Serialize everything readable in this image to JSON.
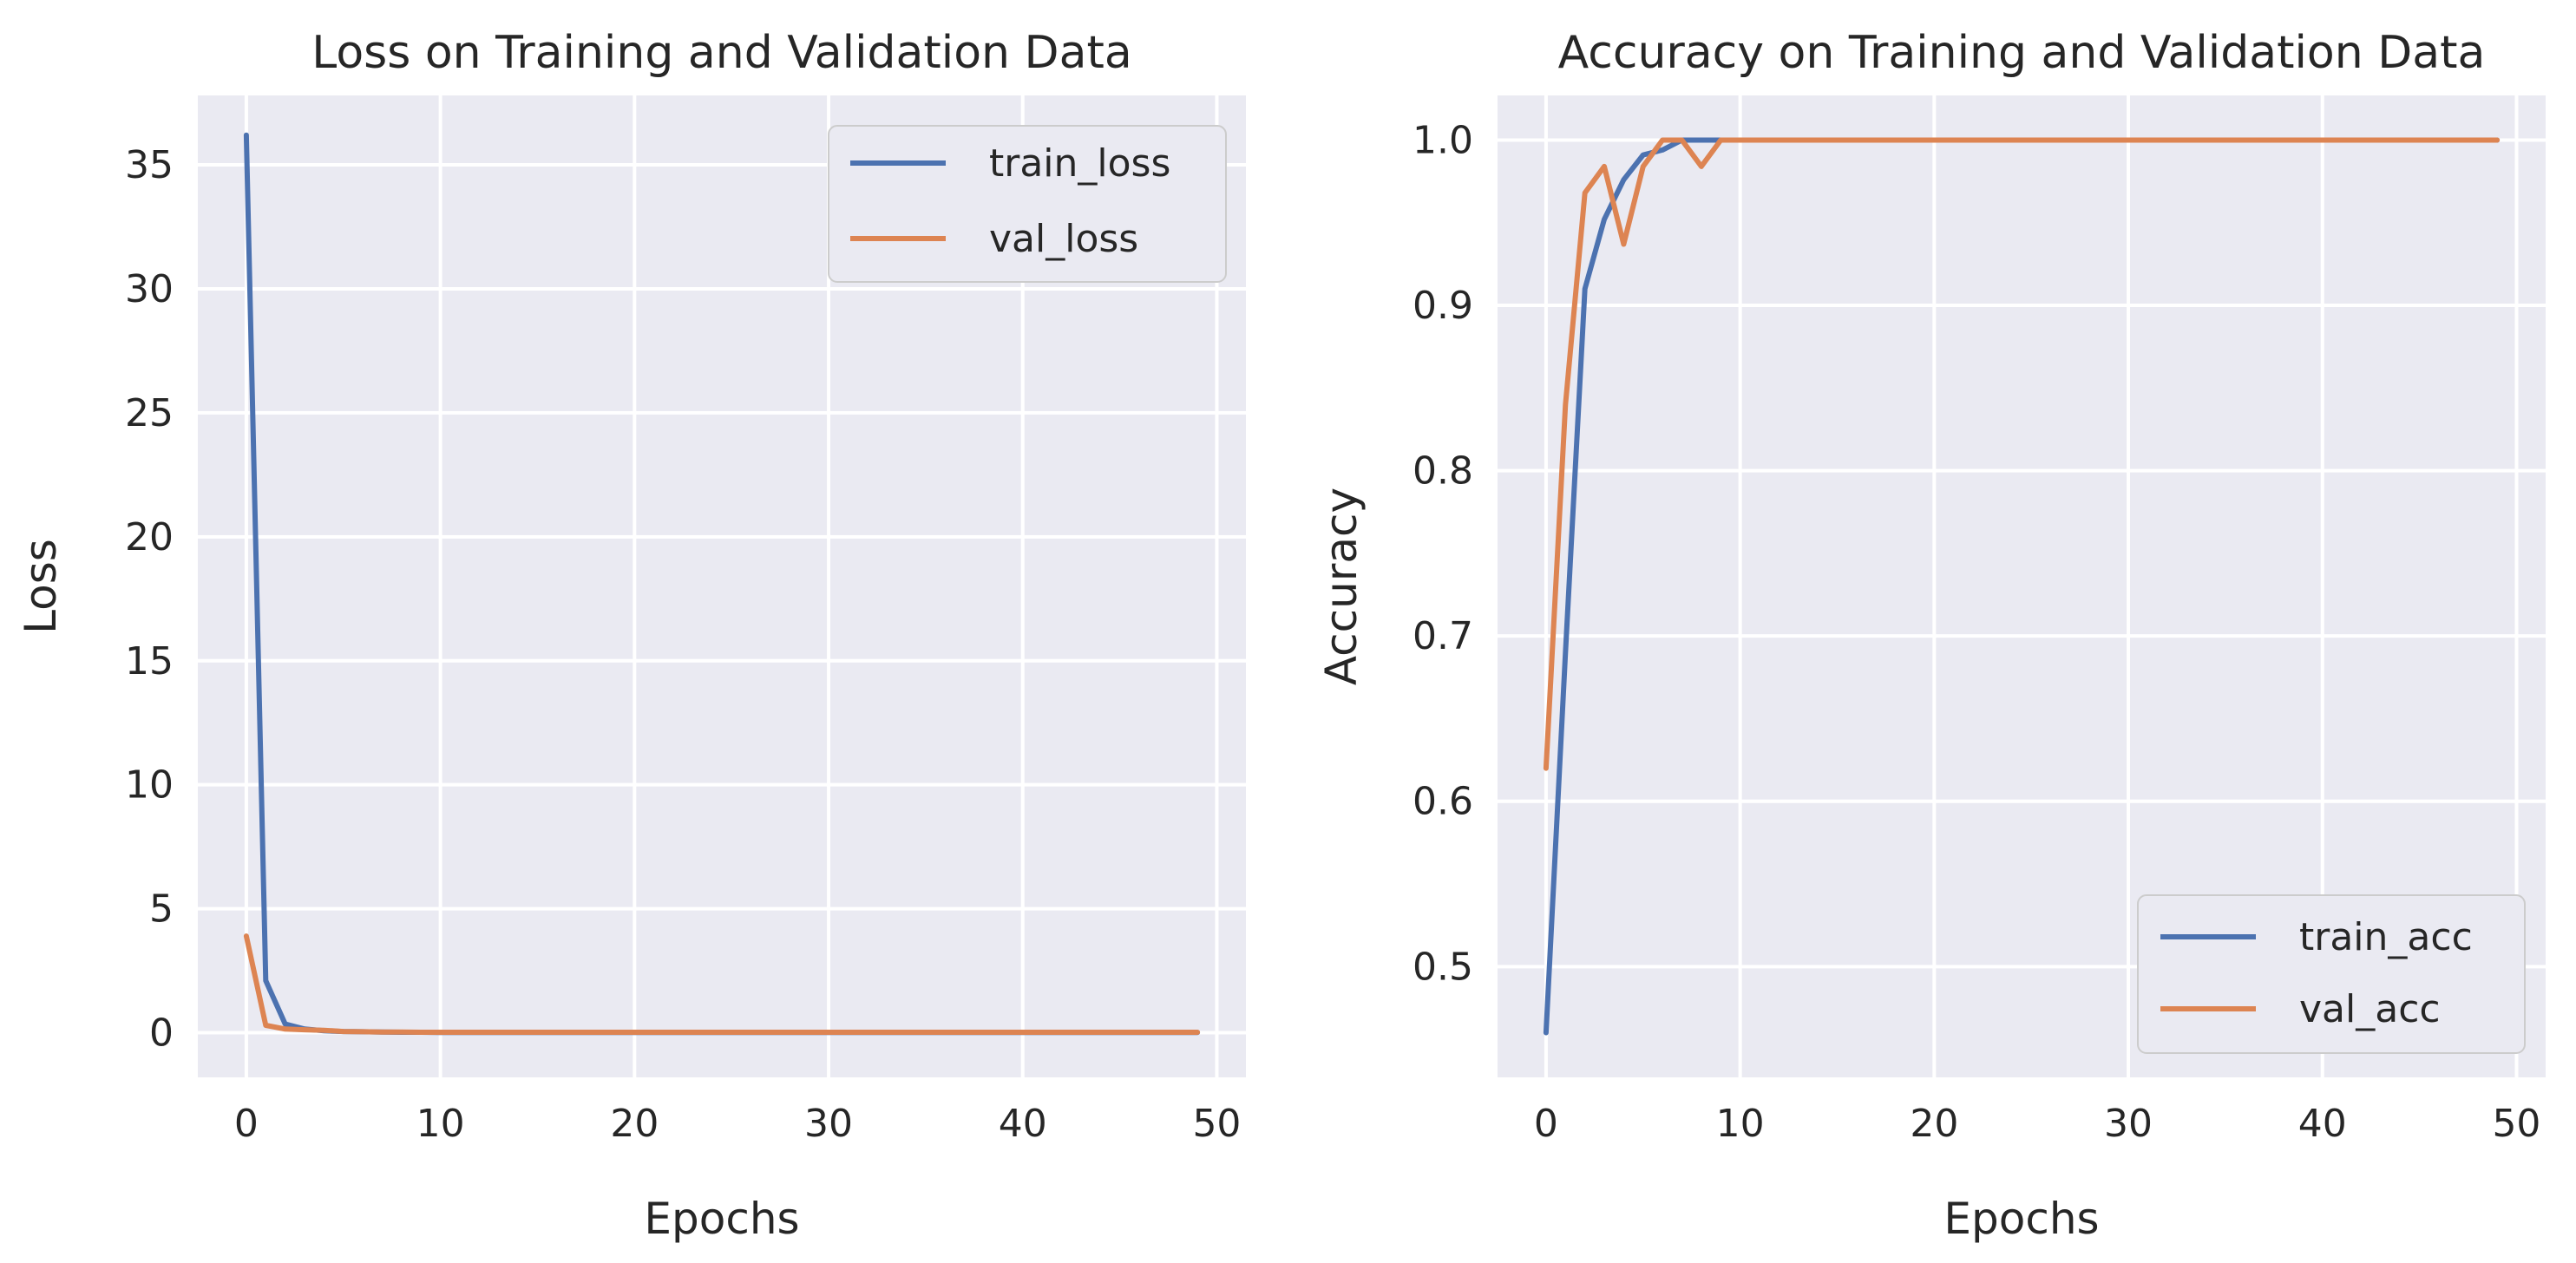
{
  "chart_data": [
    {
      "type": "line",
      "title": "Loss on Training and Validation Data",
      "xlabel": "Epochs",
      "ylabel": "Loss",
      "xlim": [
        -2.5,
        51.5
      ],
      "ylim": [
        -1.8,
        37.8
      ],
      "xticks": [
        0,
        10,
        20,
        30,
        40,
        50
      ],
      "yticks": [
        0,
        5,
        10,
        15,
        20,
        25,
        30,
        35
      ],
      "grid": true,
      "legend_position": "top-right",
      "x": [
        0,
        1,
        2,
        3,
        4,
        5,
        6,
        7,
        8,
        9,
        10,
        11,
        12,
        13,
        14,
        15,
        16,
        17,
        18,
        19,
        20,
        21,
        22,
        23,
        24,
        25,
        26,
        27,
        28,
        29,
        30,
        31,
        32,
        33,
        34,
        35,
        36,
        37,
        38,
        39,
        40,
        41,
        42,
        43,
        44,
        45,
        46,
        47,
        48,
        49
      ],
      "series": [
        {
          "name": "train_loss",
          "color": "#4c72b0",
          "values": [
            36.2,
            2.1,
            0.35,
            0.15,
            0.08,
            0.05,
            0.04,
            0.03,
            0.02,
            0.02,
            0.01,
            0.01,
            0.01,
            0.01,
            0.01,
            0.01,
            0.01,
            0.01,
            0.01,
            0.01,
            0.01,
            0.01,
            0.01,
            0.01,
            0.01,
            0.01,
            0.01,
            0.01,
            0.01,
            0.01,
            0.01,
            0.01,
            0.01,
            0.01,
            0.01,
            0.01,
            0.01,
            0.01,
            0.01,
            0.01,
            0.01,
            0.01,
            0.01,
            0.01,
            0.01,
            0.01,
            0.01,
            0.01,
            0.01,
            0.01
          ]
        },
        {
          "name": "val_loss",
          "color": "#dd8452",
          "values": [
            3.9,
            0.3,
            0.15,
            0.12,
            0.1,
            0.05,
            0.04,
            0.03,
            0.03,
            0.02,
            0.02,
            0.02,
            0.02,
            0.02,
            0.02,
            0.02,
            0.02,
            0.02,
            0.02,
            0.02,
            0.02,
            0.02,
            0.02,
            0.02,
            0.02,
            0.02,
            0.02,
            0.02,
            0.02,
            0.02,
            0.02,
            0.02,
            0.02,
            0.02,
            0.02,
            0.02,
            0.02,
            0.02,
            0.02,
            0.02,
            0.02,
            0.02,
            0.02,
            0.02,
            0.02,
            0.02,
            0.02,
            0.02,
            0.02,
            0.02
          ]
        }
      ]
    },
    {
      "type": "line",
      "title": "Accuracy  on Training and Validation Data",
      "xlabel": "Epochs",
      "ylabel": "Accuracy",
      "xlim": [
        -2.5,
        51.5
      ],
      "ylim": [
        0.433,
        1.027
      ],
      "xticks": [
        0,
        10,
        20,
        30,
        40,
        50
      ],
      "yticks": [
        0.5,
        0.6,
        0.7,
        0.8,
        0.9,
        1.0
      ],
      "grid": true,
      "legend_position": "bottom-right",
      "x": [
        0,
        1,
        2,
        3,
        4,
        5,
        6,
        7,
        8,
        9,
        10,
        11,
        12,
        13,
        14,
        15,
        16,
        17,
        18,
        19,
        20,
        21,
        22,
        23,
        24,
        25,
        26,
        27,
        28,
        29,
        30,
        31,
        32,
        33,
        34,
        35,
        36,
        37,
        38,
        39,
        40,
        41,
        42,
        43,
        44,
        45,
        46,
        47,
        48,
        49
      ],
      "series": [
        {
          "name": "train_acc",
          "color": "#4c72b0",
          "values": [
            0.46,
            0.69,
            0.91,
            0.952,
            0.976,
            0.991,
            0.994,
            1.0,
            1.0,
            1.0,
            1.0,
            1.0,
            1.0,
            1.0,
            1.0,
            1.0,
            1.0,
            1.0,
            1.0,
            1.0,
            1.0,
            1.0,
            1.0,
            1.0,
            1.0,
            1.0,
            1.0,
            1.0,
            1.0,
            1.0,
            1.0,
            1.0,
            1.0,
            1.0,
            1.0,
            1.0,
            1.0,
            1.0,
            1.0,
            1.0,
            1.0,
            1.0,
            1.0,
            1.0,
            1.0,
            1.0,
            1.0,
            1.0,
            1.0,
            1.0
          ]
        },
        {
          "name": "val_acc",
          "color": "#dd8452",
          "values": [
            0.62,
            0.84,
            0.968,
            0.984,
            0.937,
            0.984,
            1.0,
            1.0,
            0.984,
            1.0,
            1.0,
            1.0,
            1.0,
            1.0,
            1.0,
            1.0,
            1.0,
            1.0,
            1.0,
            1.0,
            1.0,
            1.0,
            1.0,
            1.0,
            1.0,
            1.0,
            1.0,
            1.0,
            1.0,
            1.0,
            1.0,
            1.0,
            1.0,
            1.0,
            1.0,
            1.0,
            1.0,
            1.0,
            1.0,
            1.0,
            1.0,
            1.0,
            1.0,
            1.0,
            1.0,
            1.0,
            1.0,
            1.0,
            1.0,
            1.0
          ]
        }
      ]
    }
  ]
}
